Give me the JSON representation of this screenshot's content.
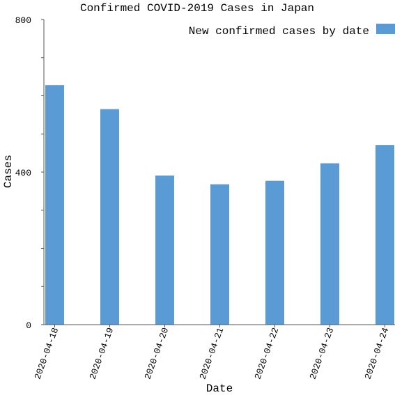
{
  "chart_data": {
    "type": "bar",
    "title": "Confirmed COVID-2019 Cases in Japan",
    "xlabel": "Date",
    "ylabel": "Cases",
    "categories": [
      "2020-04-18",
      "2020-04-19",
      "2020-04-20",
      "2020-04-21",
      "2020-04-22",
      "2020-04-23",
      "2020-04-24"
    ],
    "series": [
      {
        "name": "New confirmed cases by date",
        "values": [
          628,
          565,
          391,
          368,
          377,
          423,
          471
        ]
      }
    ],
    "ylim": [
      0,
      800
    ],
    "yticks": [
      0,
      400,
      800
    ],
    "ytick_labels": [
      "0",
      "400",
      "800"
    ],
    "minor_yticks": [
      100,
      200,
      300,
      500,
      600,
      700
    ],
    "grid": false,
    "legend_position": "top-right",
    "colors": {
      "bar": "#5b9bd5",
      "axis": "#555555"
    }
  }
}
